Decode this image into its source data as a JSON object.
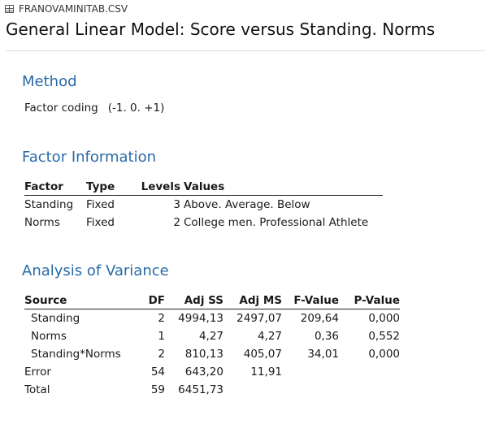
{
  "header": {
    "file_icon": "table-grid-icon",
    "file_name": "FRANOVAMINITAB.CSV",
    "title": "General Linear Model: Score versus Standing. Norms"
  },
  "method": {
    "title": "Method",
    "row_label": "Factor coding",
    "row_value": "(-1. 0. +1)"
  },
  "factor_info": {
    "title": "Factor Information",
    "columns": [
      "Factor",
      "Type",
      "Levels",
      "Values"
    ],
    "rows": [
      [
        "Standing",
        "Fixed",
        "3",
        "Above. Average. Below"
      ],
      [
        "Norms",
        "Fixed",
        "2",
        "College men. Professional Athlete"
      ]
    ]
  },
  "anova": {
    "title": "Analysis of Variance",
    "columns": [
      "Source",
      "DF",
      "Adj SS",
      "Adj MS",
      "F-Value",
      "P-Value"
    ],
    "rows": [
      [
        "Standing",
        "2",
        "4994,13",
        "2497,07",
        "209,64",
        "0,000"
      ],
      [
        "Norms",
        "1",
        "4,27",
        "4,27",
        "0,36",
        "0,552"
      ],
      [
        "Standing*Norms",
        "2",
        "810,13",
        "405,07",
        "34,01",
        "0,000"
      ],
      [
        "Error",
        "54",
        "643,20",
        "11,91",
        "",
        ""
      ],
      [
        "Total",
        "59",
        "6451,73",
        "",
        "",
        ""
      ]
    ]
  }
}
